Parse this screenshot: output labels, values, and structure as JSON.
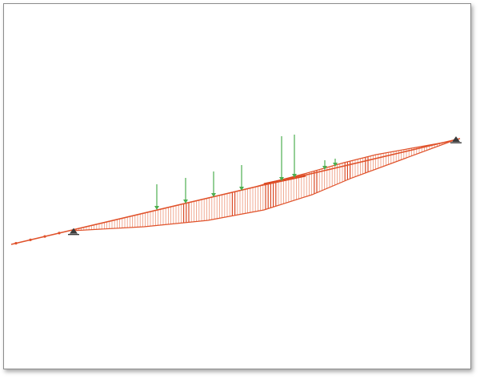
{
  "diagram": {
    "kind": "beam-moment-diagram",
    "colors": {
      "beam": "#e0522b",
      "hatch": "#e8734e",
      "hatch_dense": "#d8401a",
      "load_arrow": "#4caf50",
      "support": "#3a3a3a",
      "frame_border": "#8c8c8c",
      "background": "#ffffff"
    },
    "supports": [
      {
        "type": "pin",
        "icon": "pin-support-icon"
      },
      {
        "type": "pin",
        "icon": "pin-support-icon"
      }
    ],
    "load_count": 8
  }
}
